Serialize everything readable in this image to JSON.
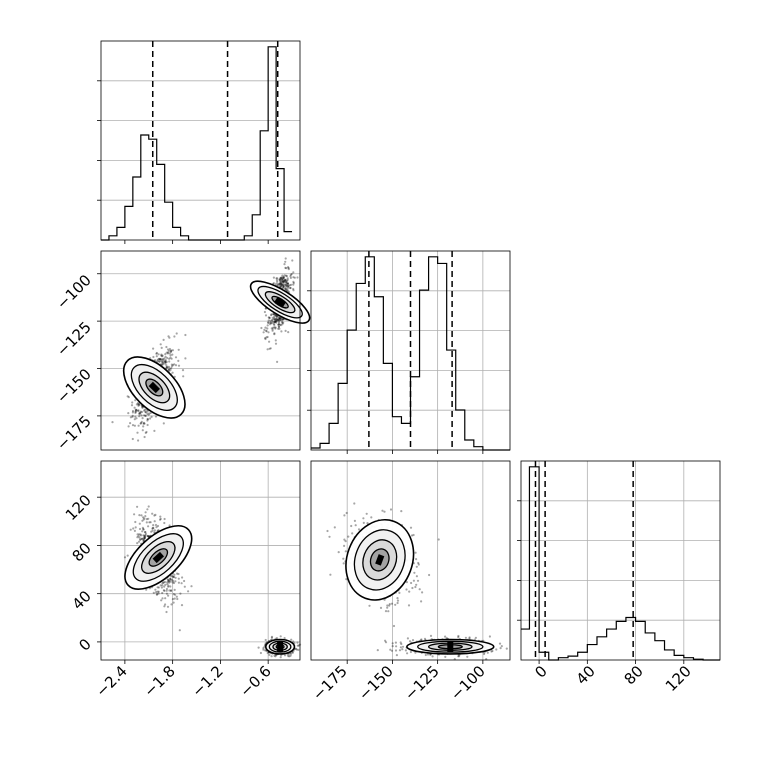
{
  "chart_data": [
    {
      "type": "histogram",
      "panel": "hist-x",
      "bins_x": [
        -2.7,
        -2.6,
        -2.5,
        -2.4,
        -2.3,
        -2.2,
        -2.1,
        -2.0,
        -1.9,
        -1.8,
        -1.7,
        -1.6,
        -1.5,
        -1.4,
        -1.3,
        -1.2,
        -1.1,
        -1.0,
        -0.9,
        -0.8,
        -0.7,
        -0.6,
        -0.5,
        -0.4,
        -0.3
      ],
      "counts": [
        0,
        1,
        3,
        8,
        15,
        25,
        24,
        18,
        9,
        3,
        1,
        0,
        0,
        0,
        0,
        0,
        0,
        0,
        1,
        6,
        26,
        46,
        17,
        2
      ],
      "quantiles": [
        -2.05,
        -1.11,
        -0.48
      ],
      "xlim": [
        -2.7,
        -0.2
      ],
      "grid": true
    },
    {
      "type": "histogram",
      "panel": "hist-y",
      "bins_x": [
        -195,
        -190,
        -185,
        -180,
        -175,
        -170,
        -165,
        -160,
        -155,
        -150,
        -145,
        -140,
        -135,
        -130,
        -125,
        -120,
        -115,
        -110,
        -105,
        -100,
        -95,
        -90,
        -85
      ],
      "counts": [
        0.3,
        1,
        4,
        10,
        18,
        25,
        29,
        23,
        13,
        5,
        4,
        11,
        24,
        29,
        28,
        15,
        6,
        1.5,
        0.5,
        0,
        0,
        0
      ],
      "quantiles": [
        -163,
        -140,
        -117
      ],
      "xlim": [
        -195,
        -85
      ],
      "xticks": [
        -175,
        -150,
        -125,
        -100
      ],
      "grid": true
    },
    {
      "type": "histogram",
      "panel": "hist-z",
      "bins_x": [
        -15,
        -8,
        0,
        8,
        16,
        24,
        32,
        40,
        48,
        56,
        64,
        72,
        80,
        88,
        96,
        104,
        112,
        120,
        128,
        136,
        150
      ],
      "counts": [
        4,
        25,
        1,
        0,
        0.3,
        0.5,
        1,
        2,
        3,
        4,
        5,
        5.5,
        5,
        3.5,
        2.5,
        1.3,
        0.6,
        0.3,
        0.1,
        0
      ],
      "quantiles": [
        -3,
        5,
        78
      ],
      "xlim": [
        -15,
        150
      ],
      "xticks": [
        0,
        40,
        80,
        120
      ],
      "grid": true
    },
    {
      "type": "scatter",
      "panel": "x-vs-y",
      "clusters": [
        {
          "mean": [
            -2.03,
            -160
          ],
          "sd": [
            0.13,
            10
          ],
          "corr": 0.55,
          "n": 600
        },
        {
          "mean": [
            -0.45,
            -115
          ],
          "sd": [
            0.075,
            9
          ],
          "corr": 0.55,
          "n": 500
        }
      ],
      "contour_centers": [
        [
          -2.0,
          -157
        ],
        [
          -0.45,
          -117
        ]
      ],
      "xlim": [
        -2.7,
        -0.2
      ],
      "ylim": [
        -193,
        -88
      ],
      "yticks": [
        -175,
        -150,
        -125,
        -100
      ],
      "grid": true
    },
    {
      "type": "scatter",
      "panel": "x-vs-z",
      "clusters": [
        {
          "mean": [
            -1.98,
            70
          ],
          "sd": [
            0.13,
            17
          ],
          "corr": -0.55,
          "n": 600
        },
        {
          "mean": [
            -0.45,
            -4
          ],
          "sd": [
            0.09,
            3
          ],
          "corr": 0.0,
          "n": 500
        }
      ],
      "contour_centers": [
        [
          -1.98,
          70
        ],
        [
          -0.45,
          -4
        ]
      ],
      "xlim": [
        -2.7,
        -0.2
      ],
      "ylim": [
        -15,
        150
      ],
      "xticks": [
        -2.4,
        -1.8,
        -1.2,
        -0.6
      ],
      "yticks": [
        0,
        40,
        80,
        120
      ],
      "grid": true
    },
    {
      "type": "scatter",
      "panel": "y-vs-z",
      "clusters": [
        {
          "mean": [
            -157,
            68
          ],
          "sd": [
            9,
            17
          ],
          "corr": -0.3,
          "n": 600
        },
        {
          "mean": [
            -118,
            -4
          ],
          "sd": [
            12,
            3
          ],
          "corr": 0.0,
          "n": 500
        }
      ],
      "contour_centers": [
        [
          -157,
          68
        ],
        [
          -118,
          -4
        ]
      ],
      "xlim": [
        -195,
        -85
      ],
      "ylim": [
        -15,
        150
      ],
      "xticks": [
        -175,
        -150,
        -125,
        -100
      ],
      "grid": true
    }
  ],
  "tick_labels": {
    "x_param1": [
      "−2.4",
      "−1.8",
      "−1.2",
      "−0.6"
    ],
    "y_param2": [
      "−175",
      "−150",
      "−125",
      "−100"
    ],
    "y_param3": [
      "0",
      "40",
      "80",
      "120"
    ],
    "x_param2": [
      "−175",
      "−150",
      "−125",
      "−100"
    ],
    "x_param3": [
      "0",
      "40",
      "80",
      "120"
    ]
  }
}
